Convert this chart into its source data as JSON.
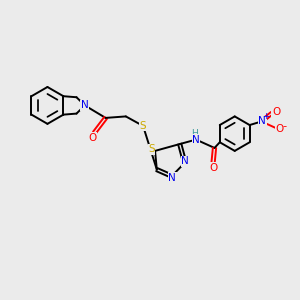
{
  "background_color": "#ebebeb",
  "atom_colors": {
    "C": "#000000",
    "N": "#0000ee",
    "O": "#ff0000",
    "S": "#ccaa00",
    "H": "#3a9a9a"
  },
  "lw": 1.4,
  "fs": 7.5,
  "xlim": [
    0,
    10
  ],
  "ylim": [
    0,
    10
  ]
}
